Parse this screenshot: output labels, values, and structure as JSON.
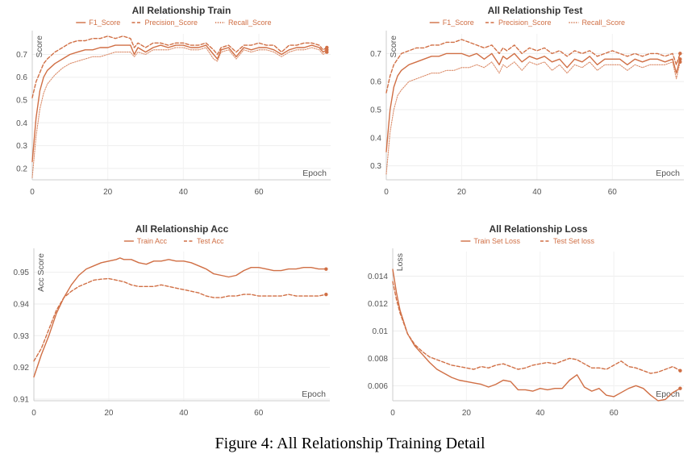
{
  "figure": {
    "caption": "Figure 4: All Relationship Training Detail",
    "accent_color": "#d06f45",
    "light_color": "#f3c5ab"
  },
  "chart_data": [
    {
      "type": "line",
      "title": "All Relationship Train",
      "xlabel": "Epoch",
      "ylabel": "Score",
      "xlim": [
        0,
        79
      ],
      "ylim": [
        0.15,
        0.79
      ],
      "xticks": [
        0,
        20,
        40,
        60
      ],
      "yticks": [
        0.2,
        0.3,
        0.4,
        0.5,
        0.6,
        0.7
      ],
      "tick_labels_y": [
        "0.2",
        "0.3",
        "0.4",
        "0.5",
        "0.6",
        "0.7"
      ],
      "tick_labels_x": [
        "0",
        "20",
        "40",
        "60"
      ],
      "grid": true,
      "legend": "top-center",
      "series": [
        {
          "name": "F1_Score",
          "style": "solid",
          "x": [
            0,
            1,
            2,
            3,
            4,
            6,
            8,
            10,
            12,
            14,
            16,
            18,
            20,
            22,
            24,
            26,
            27,
            28,
            30,
            32,
            34,
            36,
            38,
            40,
            42,
            44,
            46,
            48,
            49,
            50,
            52,
            54,
            56,
            58,
            60,
            62,
            64,
            66,
            68,
            70,
            72,
            74,
            76,
            77,
            78
          ],
          "y": [
            0.23,
            0.42,
            0.54,
            0.6,
            0.63,
            0.66,
            0.68,
            0.7,
            0.71,
            0.72,
            0.72,
            0.73,
            0.73,
            0.74,
            0.74,
            0.74,
            0.7,
            0.73,
            0.71,
            0.73,
            0.74,
            0.73,
            0.74,
            0.74,
            0.73,
            0.73,
            0.74,
            0.7,
            0.68,
            0.72,
            0.73,
            0.69,
            0.73,
            0.72,
            0.73,
            0.73,
            0.72,
            0.7,
            0.72,
            0.73,
            0.73,
            0.74,
            0.73,
            0.71,
            0.72
          ]
        },
        {
          "name": "Precision_Score",
          "style": "dashed",
          "x": [
            0,
            1,
            2,
            3,
            4,
            6,
            8,
            10,
            12,
            14,
            16,
            18,
            20,
            22,
            24,
            26,
            27,
            28,
            30,
            32,
            34,
            36,
            38,
            40,
            42,
            44,
            46,
            48,
            49,
            50,
            52,
            54,
            56,
            58,
            60,
            62,
            64,
            66,
            68,
            70,
            72,
            74,
            76,
            77,
            78
          ],
          "y": [
            0.51,
            0.58,
            0.62,
            0.66,
            0.68,
            0.71,
            0.73,
            0.75,
            0.76,
            0.76,
            0.77,
            0.77,
            0.78,
            0.77,
            0.78,
            0.77,
            0.73,
            0.75,
            0.73,
            0.75,
            0.75,
            0.74,
            0.75,
            0.75,
            0.74,
            0.74,
            0.75,
            0.72,
            0.7,
            0.73,
            0.74,
            0.71,
            0.74,
            0.74,
            0.75,
            0.74,
            0.74,
            0.71,
            0.74,
            0.74,
            0.75,
            0.75,
            0.74,
            0.72,
            0.73
          ]
        },
        {
          "name": "Recall_Score",
          "style": "dotted",
          "x": [
            0,
            1,
            2,
            3,
            4,
            6,
            8,
            10,
            12,
            14,
            16,
            18,
            20,
            22,
            24,
            26,
            27,
            28,
            30,
            32,
            34,
            36,
            38,
            40,
            42,
            44,
            46,
            48,
            49,
            50,
            52,
            54,
            56,
            58,
            60,
            62,
            64,
            66,
            68,
            70,
            72,
            74,
            76,
            77,
            78
          ],
          "y": [
            0.16,
            0.34,
            0.46,
            0.53,
            0.57,
            0.61,
            0.64,
            0.66,
            0.67,
            0.68,
            0.69,
            0.69,
            0.7,
            0.71,
            0.71,
            0.71,
            0.69,
            0.71,
            0.7,
            0.72,
            0.72,
            0.72,
            0.73,
            0.73,
            0.72,
            0.72,
            0.73,
            0.68,
            0.67,
            0.71,
            0.72,
            0.68,
            0.72,
            0.71,
            0.72,
            0.72,
            0.71,
            0.69,
            0.71,
            0.72,
            0.72,
            0.73,
            0.72,
            0.7,
            0.71
          ]
        }
      ]
    },
    {
      "type": "line",
      "title": "All Relationship Test",
      "xlabel": "Epoch",
      "ylabel": "Score",
      "xlim": [
        0,
        79
      ],
      "ylim": [
        0.25,
        0.77
      ],
      "xticks": [
        0,
        20,
        40,
        60
      ],
      "yticks": [
        0.3,
        0.4,
        0.5,
        0.6,
        0.7
      ],
      "tick_labels_y": [
        "0.3",
        "0.4",
        "0.5",
        "0.6",
        "0.7"
      ],
      "tick_labels_x": [
        "0",
        "20",
        "40",
        "60"
      ],
      "grid": true,
      "legend": "top-center",
      "series": [
        {
          "name": "F1_Score",
          "style": "solid",
          "x": [
            0,
            1,
            2,
            3,
            4,
            6,
            8,
            10,
            12,
            14,
            16,
            18,
            20,
            22,
            24,
            26,
            28,
            30,
            31,
            32,
            34,
            36,
            38,
            40,
            42,
            44,
            46,
            48,
            50,
            52,
            54,
            56,
            58,
            60,
            62,
            64,
            66,
            68,
            70,
            72,
            74,
            76,
            77,
            78
          ],
          "y": [
            0.35,
            0.5,
            0.58,
            0.62,
            0.64,
            0.66,
            0.67,
            0.68,
            0.69,
            0.69,
            0.7,
            0.7,
            0.7,
            0.69,
            0.7,
            0.68,
            0.7,
            0.66,
            0.69,
            0.68,
            0.7,
            0.67,
            0.69,
            0.68,
            0.69,
            0.67,
            0.68,
            0.65,
            0.68,
            0.67,
            0.69,
            0.66,
            0.68,
            0.68,
            0.68,
            0.66,
            0.68,
            0.67,
            0.68,
            0.68,
            0.67,
            0.68,
            0.63,
            0.68
          ]
        },
        {
          "name": "Precision_Score",
          "style": "dashed",
          "x": [
            0,
            1,
            2,
            3,
            4,
            6,
            8,
            10,
            12,
            14,
            16,
            18,
            20,
            22,
            24,
            26,
            28,
            30,
            31,
            32,
            34,
            36,
            38,
            40,
            42,
            44,
            46,
            48,
            50,
            52,
            54,
            56,
            58,
            60,
            62,
            64,
            66,
            68,
            70,
            72,
            74,
            76,
            77,
            78
          ],
          "y": [
            0.56,
            0.62,
            0.66,
            0.68,
            0.7,
            0.71,
            0.72,
            0.72,
            0.73,
            0.73,
            0.74,
            0.74,
            0.75,
            0.74,
            0.73,
            0.72,
            0.73,
            0.7,
            0.72,
            0.71,
            0.73,
            0.7,
            0.72,
            0.71,
            0.72,
            0.7,
            0.71,
            0.69,
            0.71,
            0.7,
            0.71,
            0.69,
            0.7,
            0.71,
            0.7,
            0.69,
            0.7,
            0.69,
            0.7,
            0.7,
            0.69,
            0.7,
            0.66,
            0.7
          ]
        },
        {
          "name": "Recall_Score",
          "style": "dotted",
          "x": [
            0,
            1,
            2,
            3,
            4,
            6,
            8,
            10,
            12,
            14,
            16,
            18,
            20,
            22,
            24,
            26,
            28,
            30,
            31,
            32,
            34,
            36,
            38,
            40,
            42,
            44,
            46,
            48,
            50,
            52,
            54,
            56,
            58,
            60,
            62,
            64,
            66,
            68,
            70,
            72,
            74,
            76,
            77,
            78
          ],
          "y": [
            0.27,
            0.42,
            0.5,
            0.55,
            0.57,
            0.6,
            0.61,
            0.62,
            0.63,
            0.63,
            0.64,
            0.64,
            0.65,
            0.65,
            0.66,
            0.65,
            0.67,
            0.63,
            0.66,
            0.65,
            0.67,
            0.64,
            0.67,
            0.66,
            0.67,
            0.64,
            0.66,
            0.63,
            0.66,
            0.65,
            0.67,
            0.64,
            0.66,
            0.66,
            0.66,
            0.64,
            0.66,
            0.65,
            0.66,
            0.66,
            0.66,
            0.67,
            0.61,
            0.67
          ]
        }
      ]
    },
    {
      "type": "line",
      "title": "All Relationship Acc",
      "xlabel": "Epoch",
      "ylabel": "Acc Score",
      "xlim": [
        0,
        79
      ],
      "ylim": [
        0.9095,
        0.9565
      ],
      "xticks": [
        0,
        20,
        40,
        60
      ],
      "yticks": [
        0.91,
        0.92,
        0.93,
        0.94,
        0.95
      ],
      "tick_labels_y": [
        "0.91",
        "0.92",
        "0.93",
        "0.94",
        "0.95"
      ],
      "tick_labels_x": [
        "0",
        "20",
        "40",
        "60"
      ],
      "grid": true,
      "legend": "top-center",
      "series": [
        {
          "name": "Train Acc",
          "style": "solid",
          "x": [
            0,
            2,
            4,
            6,
            8,
            10,
            12,
            14,
            16,
            18,
            20,
            22,
            23,
            24,
            26,
            28,
            30,
            32,
            34,
            36,
            38,
            40,
            42,
            44,
            46,
            48,
            50,
            52,
            54,
            56,
            58,
            60,
            62,
            64,
            66,
            68,
            70,
            72,
            74,
            76,
            78
          ],
          "y": [
            0.917,
            0.924,
            0.93,
            0.937,
            0.942,
            0.946,
            0.949,
            0.951,
            0.952,
            0.953,
            0.9535,
            0.954,
            0.9545,
            0.954,
            0.954,
            0.953,
            0.9525,
            0.9535,
            0.9535,
            0.954,
            0.9535,
            0.9535,
            0.953,
            0.952,
            0.951,
            0.9495,
            0.949,
            0.9485,
            0.949,
            0.9505,
            0.9515,
            0.9515,
            0.951,
            0.9505,
            0.9505,
            0.951,
            0.951,
            0.9515,
            0.9515,
            0.951,
            0.951
          ]
        },
        {
          "name": "Test Acc",
          "style": "dashed",
          "x": [
            0,
            2,
            4,
            6,
            8,
            10,
            12,
            14,
            16,
            18,
            20,
            22,
            24,
            26,
            28,
            30,
            32,
            34,
            36,
            38,
            40,
            42,
            44,
            46,
            48,
            50,
            52,
            54,
            56,
            58,
            60,
            62,
            64,
            66,
            68,
            70,
            72,
            74,
            76,
            78
          ],
          "y": [
            0.922,
            0.926,
            0.932,
            0.938,
            0.942,
            0.944,
            0.9455,
            0.9465,
            0.9475,
            0.9478,
            0.948,
            0.9475,
            0.947,
            0.946,
            0.9455,
            0.9455,
            0.9455,
            0.946,
            0.9455,
            0.945,
            0.9445,
            0.944,
            0.9435,
            0.9425,
            0.942,
            0.942,
            0.9425,
            0.9425,
            0.943,
            0.943,
            0.9425,
            0.9425,
            0.9425,
            0.9425,
            0.943,
            0.9425,
            0.9425,
            0.9425,
            0.9425,
            0.943
          ]
        }
      ]
    },
    {
      "type": "line",
      "title": "All Relationship Loss",
      "xlabel": "Epoch",
      "ylabel": "Loss",
      "xlim": [
        0,
        79
      ],
      "ylim": [
        0.0049,
        0.0158
      ],
      "xticks": [
        0,
        20,
        40,
        60
      ],
      "yticks": [
        0.006,
        0.008,
        0.01,
        0.012,
        0.014
      ],
      "tick_labels_y": [
        "0.006",
        "0.008",
        "0.01",
        "0.012",
        "0.014"
      ],
      "tick_labels_x": [
        "0",
        "20",
        "40",
        "60"
      ],
      "grid": true,
      "legend": "top-center",
      "series": [
        {
          "name": "Train Set Loss",
          "style": "solid",
          "x": [
            0,
            1,
            2,
            4,
            6,
            8,
            10,
            12,
            14,
            16,
            18,
            20,
            22,
            24,
            26,
            28,
            30,
            32,
            34,
            36,
            38,
            40,
            42,
            44,
            46,
            48,
            50,
            52,
            54,
            56,
            58,
            60,
            62,
            64,
            66,
            68,
            70,
            72,
            74,
            76,
            78
          ],
          "y": [
            0.0145,
            0.0128,
            0.0115,
            0.0098,
            0.0089,
            0.0083,
            0.0077,
            0.0072,
            0.0069,
            0.0066,
            0.0064,
            0.0063,
            0.0062,
            0.0061,
            0.0059,
            0.0061,
            0.0064,
            0.0063,
            0.0057,
            0.0057,
            0.0056,
            0.0058,
            0.0057,
            0.0058,
            0.0058,
            0.0064,
            0.0068,
            0.0059,
            0.0056,
            0.0058,
            0.0053,
            0.0052,
            0.0055,
            0.0058,
            0.006,
            0.0058,
            0.0053,
            0.0049,
            0.005,
            0.0055,
            0.0058
          ]
        },
        {
          "name": "Test Set loss",
          "style": "dashed",
          "x": [
            0,
            1,
            2,
            4,
            6,
            8,
            10,
            12,
            14,
            16,
            18,
            20,
            22,
            24,
            26,
            28,
            30,
            32,
            34,
            36,
            38,
            40,
            42,
            44,
            46,
            48,
            50,
            52,
            54,
            56,
            58,
            60,
            62,
            64,
            66,
            68,
            70,
            72,
            74,
            76,
            78
          ],
          "y": [
            0.0136,
            0.0123,
            0.0113,
            0.0098,
            0.009,
            0.0085,
            0.0081,
            0.0079,
            0.0077,
            0.0075,
            0.0074,
            0.0073,
            0.0072,
            0.0074,
            0.0073,
            0.0075,
            0.0076,
            0.0074,
            0.0072,
            0.0073,
            0.0075,
            0.0076,
            0.0077,
            0.0076,
            0.0078,
            0.008,
            0.0079,
            0.0076,
            0.0073,
            0.0073,
            0.0072,
            0.0075,
            0.0078,
            0.0074,
            0.0073,
            0.0071,
            0.0069,
            0.007,
            0.0072,
            0.0074,
            0.0071
          ]
        }
      ]
    }
  ]
}
